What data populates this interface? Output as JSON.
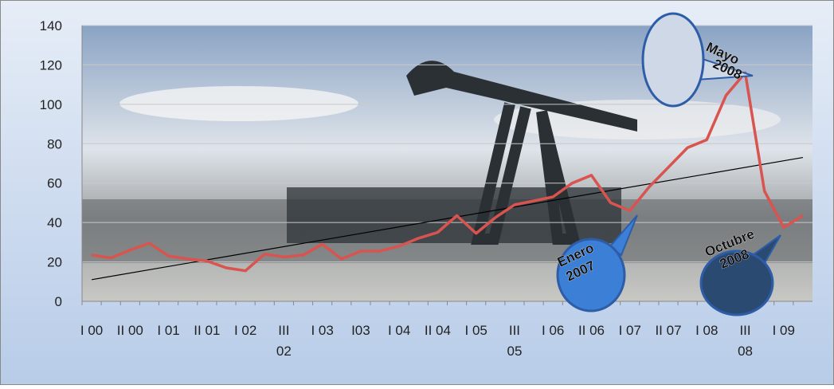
{
  "chart_data": {
    "type": "line",
    "categories": [
      "I 00",
      null,
      "II 00",
      null,
      "I 01",
      null,
      "II 01",
      null,
      "I 02",
      null,
      "III 02",
      null,
      "I 03",
      null,
      "I03",
      null,
      "I 04",
      null,
      "II 04",
      null,
      "I 05",
      null,
      "III 05",
      null,
      "I 06",
      null,
      "II 06",
      null,
      "I 07",
      null,
      "II 07",
      null,
      "I 08",
      null,
      "III 08",
      null,
      "I 09",
      null
    ],
    "series": [
      {
        "color": "#d9534f",
        "values": [
          23.5,
          22,
          26,
          29.5,
          23,
          21.5,
          20.5,
          17,
          15.5,
          24,
          22.5,
          23.5,
          29,
          21.5,
          25.5,
          25.5,
          28,
          32,
          35,
          43.5,
          34.5,
          42.5,
          49,
          51,
          53,
          60,
          64,
          50,
          46,
          58,
          68,
          78,
          82,
          104.5,
          116,
          56,
          37.5,
          43.5
        ]
      }
    ],
    "trend": {
      "color": "#000000",
      "values": [
        11,
        73
      ]
    },
    "ylim": [
      0,
      140
    ],
    "yticks": [
      0,
      20,
      40,
      60,
      80,
      100,
      120,
      140
    ],
    "grid": true,
    "annotations": [
      {
        "lines": [
          "Mayo",
          "2008"
        ],
        "category": 34
      },
      {
        "lines": [
          "Enero",
          "2007"
        ],
        "category": 28
      },
      {
        "lines": [
          "Octubre",
          "2008"
        ],
        "category": 35
      }
    ]
  }
}
